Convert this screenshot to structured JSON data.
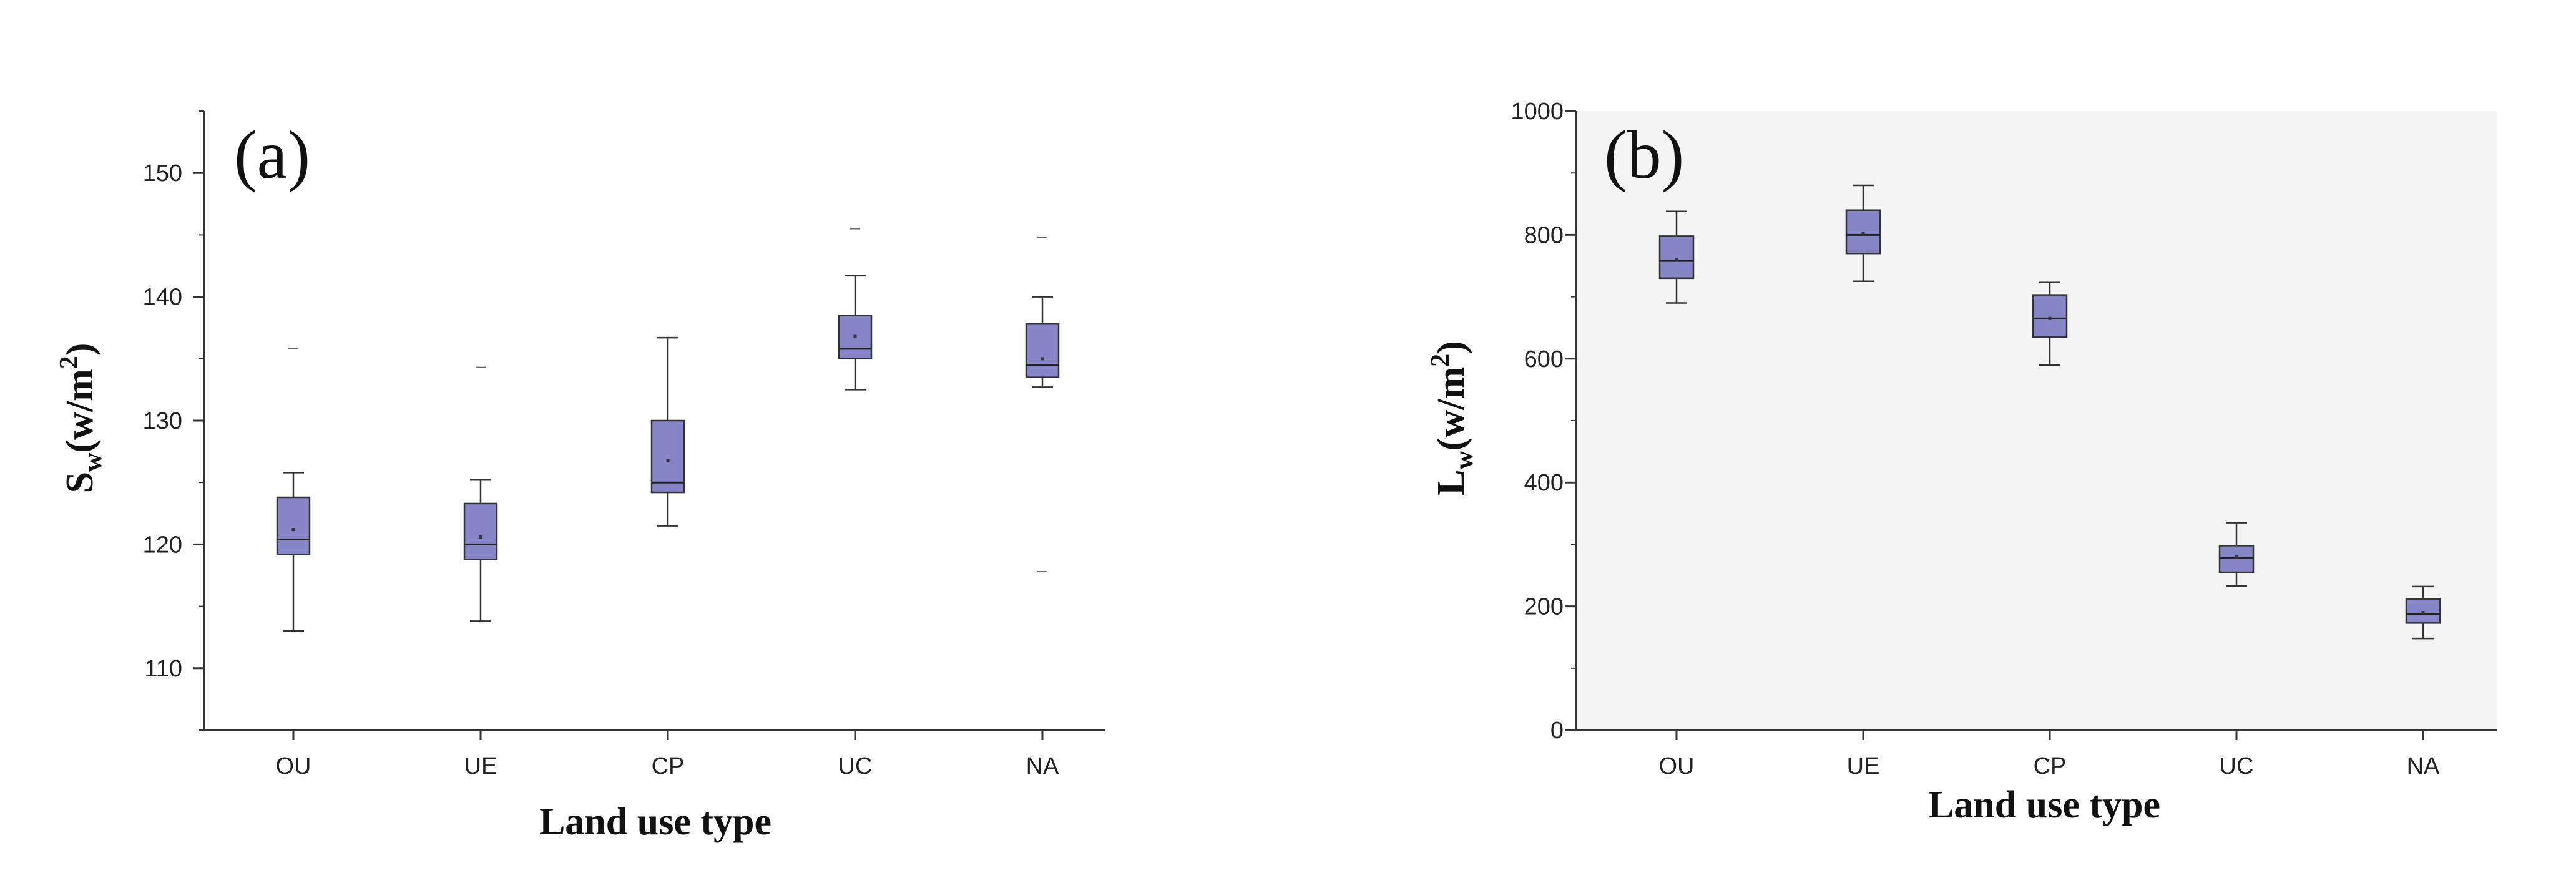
{
  "figure": {
    "background": "#ffffff",
    "box_fill": "#8585c8",
    "box_stroke": "#333333"
  },
  "chart_data": [
    {
      "type": "box",
      "panel_label": "(a)",
      "xlabel": "Land use type",
      "ylabel": "Sw(w/m2)",
      "ylim": [
        105,
        155
      ],
      "yticks": [
        110,
        120,
        130,
        140,
        150
      ],
      "ytick_labels": [
        "110",
        "120",
        "130",
        "140",
        "150"
      ],
      "categories": [
        "OU",
        "UE",
        "CP",
        "UC",
        "NA"
      ],
      "boxes": [
        {
          "min": 113,
          "q1": 119.2,
          "median": 120.4,
          "mean": 121.2,
          "q3": 123.8,
          "max": 125.8,
          "outliers": [
            135.8
          ]
        },
        {
          "min": 113.8,
          "q1": 118.8,
          "median": 120.0,
          "mean": 120.6,
          "q3": 123.3,
          "max": 125.2,
          "outliers": [
            134.3
          ]
        },
        {
          "min": 121.5,
          "q1": 124.2,
          "median": 125.0,
          "mean": 126.8,
          "q3": 130.0,
          "max": 136.7,
          "outliers": []
        },
        {
          "min": 132.5,
          "q1": 135.0,
          "median": 135.8,
          "mean": 136.8,
          "q3": 138.5,
          "max": 141.7,
          "outliers": [
            145.5
          ]
        },
        {
          "min": 132.7,
          "q1": 133.5,
          "median": 134.5,
          "mean": 135.0,
          "q3": 137.8,
          "max": 140.0,
          "outliers": [
            117.8,
            144.8
          ]
        }
      ]
    },
    {
      "type": "box",
      "panel_label": "(b)",
      "xlabel": "Land use type",
      "ylabel": "Lw(w/m2)",
      "ylim": [
        0,
        1000
      ],
      "yticks": [
        0,
        200,
        400,
        600,
        800,
        1000
      ],
      "ytick_labels": [
        "0",
        "200",
        "400",
        "600",
        "800",
        "1000"
      ],
      "categories": [
        "OU",
        "UE",
        "CP",
        "UC",
        "NA"
      ],
      "boxes": [
        {
          "min": 690,
          "q1": 730,
          "median": 758,
          "mean": 760,
          "q3": 798,
          "max": 838,
          "outliers": []
        },
        {
          "min": 725,
          "q1": 770,
          "median": 800,
          "mean": 803,
          "q3": 840,
          "max": 880,
          "outliers": []
        },
        {
          "min": 590,
          "q1": 635,
          "median": 665,
          "mean": 665,
          "q3": 703,
          "max": 723,
          "outliers": []
        },
        {
          "min": 233,
          "q1": 255,
          "median": 278,
          "mean": 280,
          "q3": 298,
          "max": 335,
          "outliers": []
        },
        {
          "min": 148,
          "q1": 173,
          "median": 188,
          "mean": 190,
          "q3": 212,
          "max": 232,
          "outliers": []
        }
      ]
    }
  ]
}
